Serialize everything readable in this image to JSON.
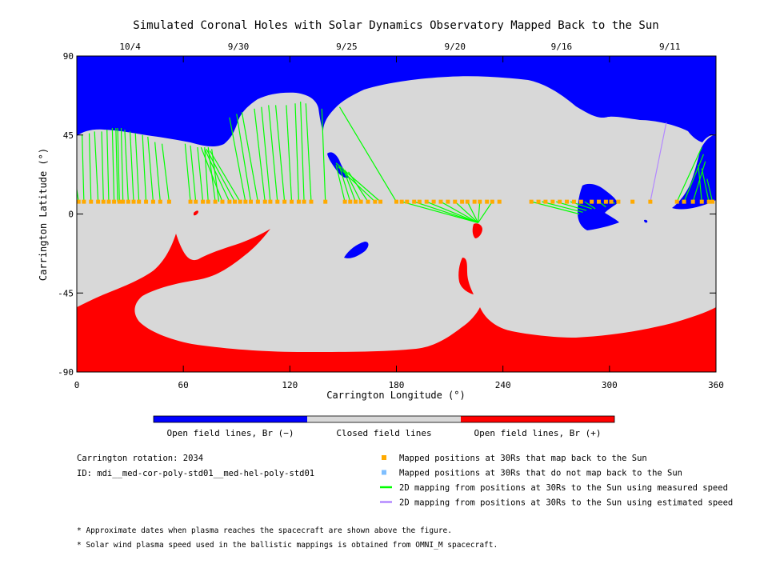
{
  "chart_data": {
    "type": "heatmap",
    "title": "Simulated Coronal Holes with Solar Dynamics Observatory Mapped Back to the Sun",
    "xlabel": "Carrington Longitude (°)",
    "ylabel": "Carrington Latitude (°)",
    "xlim": [
      0,
      360
    ],
    "ylim": [
      -90,
      90
    ],
    "x_ticks": [
      {
        "value": 0,
        "label": "0"
      },
      {
        "value": 60,
        "label": "60"
      },
      {
        "value": 120,
        "label": "120"
      },
      {
        "value": 180,
        "label": "180"
      },
      {
        "value": 240,
        "label": "240"
      },
      {
        "value": 300,
        "label": "300"
      },
      {
        "value": 360,
        "label": "360"
      }
    ],
    "y_ticks": [
      {
        "value": 90,
        "label": "90"
      },
      {
        "value": 45,
        "label": "45"
      },
      {
        "value": 0,
        "label": "0"
      },
      {
        "value": -45,
        "label": "-45"
      },
      {
        "value": -90,
        "label": "-90"
      }
    ],
    "top_dates": [
      {
        "lon": 30,
        "label": "10/4"
      },
      {
        "lon": 91,
        "label": "9/30"
      },
      {
        "lon": 152,
        "label": "9/25"
      },
      {
        "lon": 213,
        "label": "9/20"
      },
      {
        "lon": 273,
        "label": "9/16"
      },
      {
        "lon": 334,
        "label": "9/11"
      }
    ],
    "colorbar": [
      {
        "label": "Open field lines, Br (−)",
        "color": "#0000ff"
      },
      {
        "label": "Closed field lines",
        "color": "#d8d8d8"
      },
      {
        "label": "Open field lines, Br (+)",
        "color": "#ff0000"
      }
    ],
    "colors": {
      "negative_open": "#0000ff",
      "closed": "#d8d8d8",
      "positive_open": "#ff0000",
      "mapped_back": "#ffaa00",
      "not_mapped": "#7fbfff",
      "measured_speed": "#00ff00",
      "estimated_speed": "#b388ff"
    },
    "legend": [
      {
        "type": "square",
        "color": "#ffaa00",
        "label": "Mapped positions at 30Rs that map back to the Sun"
      },
      {
        "type": "square",
        "color": "#7fbfff",
        "label": "Mapped positions at 30Rs that do not map back to the Sun"
      },
      {
        "type": "line",
        "color": "#00ff00",
        "label": "2D mapping from positions at 30Rs to the Sun using measured speed"
      },
      {
        "type": "line",
        "color": "#b388ff",
        "label": "2D mapping from positions at 30Rs to the Sun using estimated speed"
      }
    ],
    "info": {
      "rotation": "Carrington rotation: 2034",
      "id": "ID: mdi__med-cor-poly-std01__med-hel-poly-std01"
    },
    "notes": [
      "* Approximate dates when plasma reaches the spacecraft are shown above the figure.",
      "* Solar wind plasma speed used in the ballistic mappings is obtained from OMNI_M spacecraft."
    ],
    "mapped_latitude": 7,
    "mapping_lines": [
      {
        "from": 1,
        "to": [
          0,
          14
        ]
      },
      {
        "from": 4,
        "to": [
          3,
          45
        ]
      },
      {
        "from": 8,
        "to": [
          7,
          46
        ]
      },
      {
        "from": 12,
        "to": [
          10,
          47
        ]
      },
      {
        "from": 15,
        "to": [
          14,
          47
        ]
      },
      {
        "from": 18,
        "to": [
          17,
          48
        ]
      },
      {
        "from": 21,
        "to": [
          20,
          49
        ]
      },
      {
        "from": 23,
        "to": [
          22,
          49
        ]
      },
      {
        "from": 24,
        "to": [
          23,
          49
        ]
      },
      {
        "from": 26,
        "to": [
          25,
          49
        ]
      },
      {
        "from": 29,
        "to": [
          27,
          48
        ]
      },
      {
        "from": 32,
        "to": [
          30,
          47
        ]
      },
      {
        "from": 35,
        "to": [
          33,
          46
        ]
      },
      {
        "from": 39,
        "to": [
          37,
          45
        ]
      },
      {
        "from": 43,
        "to": [
          40,
          44
        ]
      },
      {
        "from": 47,
        "to": [
          44,
          41
        ]
      },
      {
        "from": 52,
        "to": [
          48,
          40
        ]
      },
      {
        "from": 64,
        "to": [
          61,
          40
        ]
      },
      {
        "from": 67,
        "to": [
          64,
          39
        ]
      },
      {
        "from": 71,
        "to": [
          68,
          38
        ]
      },
      {
        "from": 74,
        "to": [
          72,
          38
        ]
      },
      {
        "from": 78,
        "to": [
          74,
          38
        ]
      },
      {
        "from": 80,
        "to": [
          76,
          37
        ]
      },
      {
        "from": 82,
        "to": [
          70,
          38
        ]
      },
      {
        "from": 86,
        "to": [
          72,
          37
        ]
      },
      {
        "from": 89,
        "to": [
          73,
          37
        ]
      },
      {
        "from": 92,
        "to": [
          75,
          36
        ]
      },
      {
        "from": 95,
        "to": [
          86,
          55
        ]
      },
      {
        "from": 98,
        "to": [
          90,
          57
        ]
      },
      {
        "from": 102,
        "to": [
          93,
          58
        ]
      },
      {
        "from": 106,
        "to": [
          100,
          60
        ]
      },
      {
        "from": 109,
        "to": [
          104,
          61
        ]
      },
      {
        "from": 113,
        "to": [
          108,
          62
        ]
      },
      {
        "from": 117,
        "to": [
          112,
          62
        ]
      },
      {
        "from": 121,
        "to": [
          118,
          62
        ]
      },
      {
        "from": 125,
        "to": [
          123,
          63
        ]
      },
      {
        "from": 128,
        "to": [
          126,
          64
        ]
      },
      {
        "from": 132,
        "to": [
          129,
          63
        ]
      },
      {
        "from": 140,
        "to": [
          138,
          60
        ]
      },
      {
        "from": 151,
        "to": [
          146,
          28
        ]
      },
      {
        "from": 154,
        "to": [
          148,
          27
        ]
      },
      {
        "from": 157,
        "to": [
          150,
          26
        ]
      },
      {
        "from": 160,
        "to": [
          151,
          25
        ]
      },
      {
        "from": 164,
        "to": [
          153,
          24
        ]
      },
      {
        "from": 168,
        "to": [
          147,
          27
        ]
      },
      {
        "from": 171,
        "to": [
          146,
          29
        ]
      },
      {
        "from": 180,
        "to": [
          148,
          61
        ]
      },
      {
        "from": 183,
        "to": [
          226,
          -5
        ]
      },
      {
        "from": 190,
        "to": [
          226,
          -5
        ]
      },
      {
        "from": 197,
        "to": [
          226,
          -5
        ]
      },
      {
        "from": 205,
        "to": [
          226,
          -5
        ]
      },
      {
        "from": 213,
        "to": [
          226,
          -5
        ]
      },
      {
        "from": 220,
        "to": [
          226,
          -5
        ]
      },
      {
        "from": 227,
        "to": [
          226,
          -5
        ]
      },
      {
        "from": 234,
        "to": [
          226,
          -5
        ]
      },
      {
        "from": 256,
        "to": [
          283,
          0
        ]
      },
      {
        "from": 262,
        "to": [
          285,
          1
        ]
      },
      {
        "from": 270,
        "to": [
          287,
          2
        ]
      },
      {
        "from": 278,
        "to": [
          290,
          3
        ]
      },
      {
        "from": 286,
        "to": [
          292,
          3
        ]
      },
      {
        "from": 294,
        "to": [
          298,
          4
        ]
      },
      {
        "from": 301,
        "to": [
          303,
          6
        ]
      },
      {
        "from": 338,
        "to": [
          352,
          38
        ]
      },
      {
        "from": 342,
        "to": [
          353,
          34
        ]
      },
      {
        "from": 347,
        "to": [
          354,
          30
        ]
      },
      {
        "from": 352,
        "to": [
          350,
          28
        ]
      },
      {
        "from": 356,
        "to": [
          352,
          26
        ]
      },
      {
        "from": 358,
        "to": [
          355,
          20
        ]
      }
    ],
    "estimated_lines": [
      {
        "from": 323,
        "to": [
          332,
          52
        ]
      }
    ],
    "mapped_positions": [
      1,
      4,
      8,
      12,
      15,
      18,
      21,
      24,
      26,
      29,
      32,
      35,
      39,
      43,
      47,
      52,
      64,
      67,
      71,
      74,
      78,
      82,
      86,
      89,
      92,
      95,
      98,
      102,
      106,
      109,
      113,
      117,
      121,
      125,
      128,
      132,
      140,
      151,
      154,
      157,
      160,
      164,
      168,
      171,
      180,
      183,
      186,
      190,
      193,
      197,
      201,
      205,
      209,
      213,
      217,
      220,
      224,
      227,
      231,
      234,
      238,
      256,
      260,
      264,
      268,
      272,
      276,
      280,
      284,
      290,
      294,
      298,
      301,
      305,
      313,
      323,
      338,
      342,
      347,
      352,
      356,
      358
    ]
  }
}
